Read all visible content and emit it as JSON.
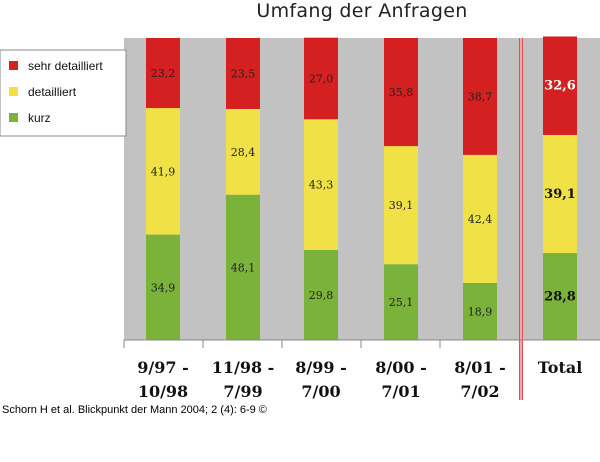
{
  "colors": {
    "plot_bg": "#c2c2c2",
    "sehr_detailliert": "#d42020",
    "detailliert": "#f0e246",
    "kurz": "#7ab23a",
    "divider": "#e05050",
    "total_label": "#ffffff"
  },
  "chart_data": {
    "type": "bar",
    "stacked": true,
    "percent": true,
    "title": "Umfang der Anfragen",
    "categories": [
      [
        "9/97 -",
        "10/98"
      ],
      [
        "11/98 -",
        "7/99"
      ],
      [
        "8/99 -",
        "7/00"
      ],
      [
        "8/00 -",
        "7/01"
      ],
      [
        "8/01 -",
        "7/02"
      ],
      [
        "Total"
      ]
    ],
    "series": [
      {
        "name": "kurz",
        "color_key": "kurz",
        "values": [
          34.9,
          48.1,
          29.8,
          25.1,
          18.9,
          28.8
        ],
        "labels": [
          "34,9",
          "48,1",
          "29,8",
          "25,1",
          "18,9",
          "28,8"
        ]
      },
      {
        "name": "detailliert",
        "color_key": "detailliert",
        "values": [
          41.9,
          28.4,
          43.3,
          39.1,
          42.4,
          39.1
        ],
        "labels": [
          "41,9",
          "28,4",
          "43,3",
          "39,1",
          "42,4",
          "39,1"
        ]
      },
      {
        "name": "sehr detailliert",
        "color_key": "sehr_detailliert",
        "values": [
          23.2,
          23.5,
          27.0,
          35.8,
          38.7,
          32.6
        ],
        "labels": [
          "23,2",
          "23,5",
          "27,0",
          "35,8",
          "38,7",
          "32,6"
        ]
      }
    ],
    "legend": {
      "placement": "top-left",
      "entries": [
        "sehr detailliert",
        "detailliert",
        "kurz"
      ]
    },
    "total_separator": true
  },
  "citation": "Schorn H et al. Blickpunkt der Mann 2004; 2 (4): 6-9 ©"
}
